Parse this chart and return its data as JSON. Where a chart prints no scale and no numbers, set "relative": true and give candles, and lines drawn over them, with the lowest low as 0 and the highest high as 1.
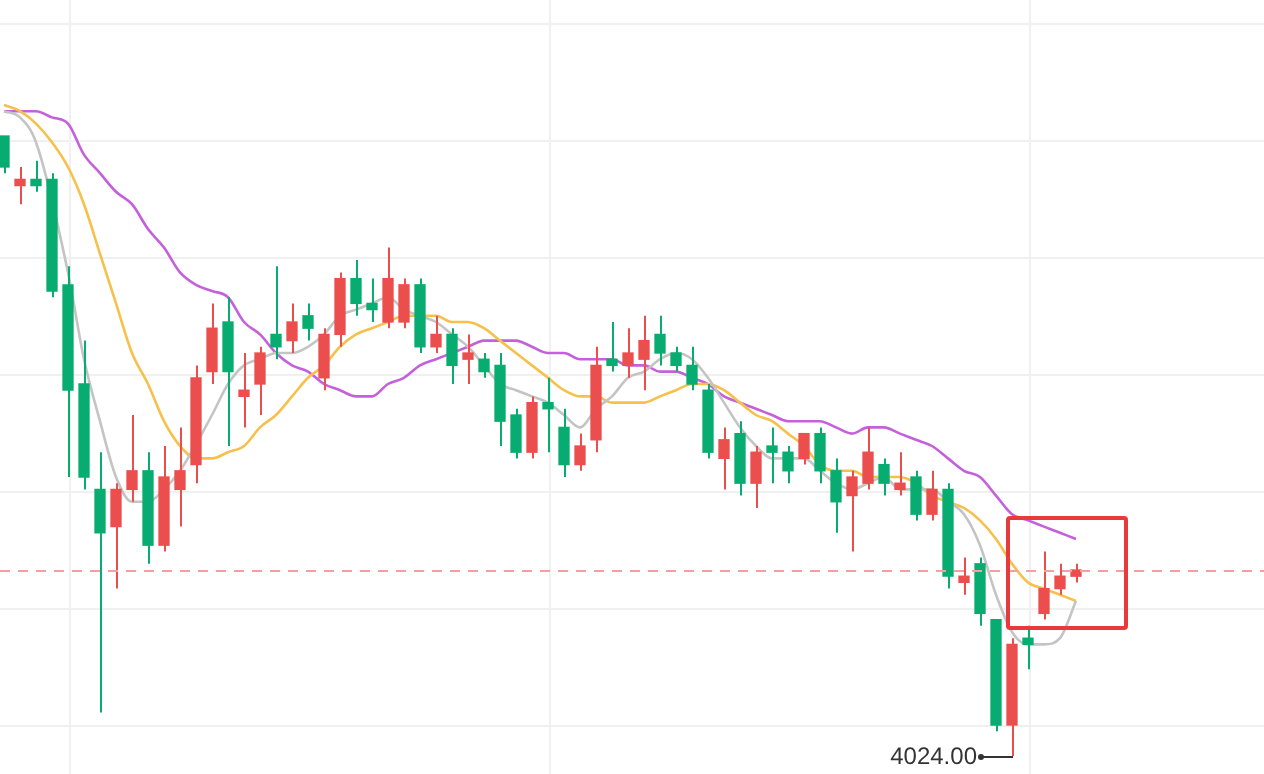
{
  "chart_data": {
    "type": "candlestick",
    "relative": true,
    "categories": [
      null,
      null,
      null,
      null,
      null,
      null,
      null,
      null,
      null,
      null,
      null,
      null,
      null,
      null,
      null,
      null,
      null,
      null,
      null,
      null,
      null,
      null,
      null,
      null,
      null,
      null,
      null,
      null,
      null,
      null,
      null,
      null,
      null,
      null,
      null,
      null,
      null,
      null,
      null,
      null,
      null,
      null,
      null,
      null,
      null,
      null,
      null,
      null,
      null,
      null,
      null,
      null,
      null,
      null,
      null,
      null,
      null,
      null,
      null,
      null,
      null,
      null,
      null,
      null,
      null,
      null,
      null,
      null
    ],
    "ohlc": [
      [
        1.0,
        1.0,
        0.94,
        0.95
      ],
      [
        0.92,
        0.95,
        0.89,
        0.93
      ],
      [
        0.93,
        0.96,
        0.91,
        0.92
      ],
      [
        0.93,
        0.94,
        0.74,
        0.75
      ],
      [
        0.76,
        0.79,
        0.45,
        0.59
      ],
      [
        0.6,
        0.67,
        0.43,
        0.45
      ],
      [
        0.43,
        0.49,
        0.07,
        0.36
      ],
      [
        0.37,
        0.44,
        0.27,
        0.43
      ],
      [
        0.43,
        0.55,
        0.41,
        0.46
      ],
      [
        0.46,
        0.49,
        0.31,
        0.34
      ],
      [
        0.34,
        0.5,
        0.33,
        0.45
      ],
      [
        0.43,
        0.53,
        0.37,
        0.46
      ],
      [
        0.47,
        0.63,
        0.44,
        0.61
      ],
      [
        0.62,
        0.73,
        0.6,
        0.69
      ],
      [
        0.7,
        0.74,
        0.5,
        0.62
      ],
      [
        0.58,
        0.65,
        0.53,
        0.59
      ],
      [
        0.6,
        0.66,
        0.55,
        0.65
      ],
      [
        0.68,
        0.79,
        0.64,
        0.66
      ],
      [
        0.67,
        0.73,
        0.65,
        0.7
      ],
      [
        0.71,
        0.73,
        0.67,
        0.69
      ],
      [
        0.61,
        0.69,
        0.59,
        0.68
      ],
      [
        0.68,
        0.78,
        0.66,
        0.77
      ],
      [
        0.77,
        0.8,
        0.71,
        0.73
      ],
      [
        0.73,
        0.77,
        0.7,
        0.72
      ],
      [
        0.7,
        0.82,
        0.69,
        0.77
      ],
      [
        0.7,
        0.77,
        0.69,
        0.76
      ],
      [
        0.76,
        0.77,
        0.65,
        0.66
      ],
      [
        0.66,
        0.71,
        0.65,
        0.68
      ],
      [
        0.68,
        0.69,
        0.6,
        0.63
      ],
      [
        0.64,
        0.68,
        0.6,
        0.65
      ],
      [
        0.64,
        0.65,
        0.61,
        0.62
      ],
      [
        0.63,
        0.65,
        0.5,
        0.54
      ],
      [
        0.55,
        0.56,
        0.48,
        0.49
      ],
      [
        0.49,
        0.58,
        0.48,
        0.57
      ],
      [
        0.57,
        0.61,
        0.49,
        0.56
      ],
      [
        0.53,
        0.56,
        0.45,
        0.47
      ],
      [
        0.47,
        0.52,
        0.46,
        0.5
      ],
      [
        0.51,
        0.66,
        0.49,
        0.63
      ],
      [
        0.64,
        0.7,
        0.62,
        0.63
      ],
      [
        0.63,
        0.69,
        0.61,
        0.65
      ],
      [
        0.64,
        0.71,
        0.59,
        0.67
      ],
      [
        0.68,
        0.71,
        0.63,
        0.65
      ],
      [
        0.65,
        0.66,
        0.62,
        0.63
      ],
      [
        0.63,
        0.66,
        0.59,
        0.6
      ],
      [
        0.59,
        0.6,
        0.48,
        0.49
      ],
      [
        0.48,
        0.53,
        0.43,
        0.51
      ],
      [
        0.52,
        0.54,
        0.42,
        0.44
      ],
      [
        0.44,
        0.5,
        0.4,
        0.49
      ],
      [
        0.5,
        0.53,
        0.44,
        0.49
      ],
      [
        0.49,
        0.5,
        0.44,
        0.46
      ],
      [
        0.48,
        0.52,
        0.47,
        0.52
      ],
      [
        0.52,
        0.53,
        0.44,
        0.46
      ],
      [
        0.46,
        0.48,
        0.36,
        0.41
      ],
      [
        0.42,
        0.46,
        0.33,
        0.45
      ],
      [
        0.44,
        0.53,
        0.43,
        0.49
      ],
      [
        0.47,
        0.48,
        0.42,
        0.44
      ],
      [
        0.43,
        0.49,
        0.42,
        0.44
      ],
      [
        0.45,
        0.46,
        0.38,
        0.39
      ],
      [
        0.39,
        0.46,
        0.38,
        0.43
      ],
      [
        0.43,
        0.44,
        0.27,
        0.29
      ],
      [
        0.28,
        0.32,
        0.26,
        0.29
      ],
      [
        0.31,
        0.32,
        0.21,
        0.23
      ],
      [
        0.22,
        0.22,
        0.04,
        0.05
      ],
      [
        0.05,
        0.19,
        0,
        0.18
      ],
      [
        0.19,
        0.21,
        0.14,
        0.18
      ],
      [
        0.23,
        0.33,
        0.22,
        0.27
      ],
      [
        0.27,
        0.31,
        0.26,
        0.29
      ],
      [
        0.29,
        0.31,
        0.28,
        0.3
      ]
    ],
    "colors": [
      "#07ac70",
      "#eb4e4d",
      "#07ac70",
      "#07ac70",
      "#07ac70",
      "#07ac70",
      "#07ac70",
      "#eb4e4d",
      "#eb4e4d",
      "#07ac70",
      "#eb4e4d",
      "#eb4e4d",
      "#eb4e4d",
      "#eb4e4d",
      "#07ac70",
      "#eb4e4d",
      "#eb4e4d",
      "#07ac70",
      "#eb4e4d",
      "#07ac70",
      "#eb4e4d",
      "#eb4e4d",
      "#07ac70",
      "#07ac70",
      "#eb4e4d",
      "#eb4e4d",
      "#07ac70",
      "#eb4e4d",
      "#07ac70",
      "#eb4e4d",
      "#07ac70",
      "#07ac70",
      "#07ac70",
      "#eb4e4d",
      "#07ac70",
      "#07ac70",
      "#eb4e4d",
      "#eb4e4d",
      "#07ac70",
      "#eb4e4d",
      "#eb4e4d",
      "#07ac70",
      "#07ac70",
      "#07ac70",
      "#07ac70",
      "#eb4e4d",
      "#07ac70",
      "#eb4e4d",
      "#07ac70",
      "#07ac70",
      "#eb4e4d",
      "#07ac70",
      "#07ac70",
      "#eb4e4d",
      "#eb4e4d",
      "#07ac70",
      "#eb4e4d",
      "#07ac70",
      "#eb4e4d",
      "#07ac70",
      "#eb4e4d",
      "#07ac70",
      "#07ac70",
      "#eb4e4d",
      "#07ac70",
      "#eb4e4d",
      "#eb4e4d",
      "#eb4e4d"
    ],
    "series": [
      {
        "type": "line",
        "color": "#c4c4c4",
        "values": [
          1.04,
          1.03,
          0.99,
          null,
          0.78,
          0.64,
          0.54,
          0.45,
          0.41,
          0.41,
          0.43,
          0.46,
          null,
          0.55,
          0.6,
          0.63,
          0.64,
          0.65,
          0.65,
          0.66,
          0.68,
          0.71,
          0.72,
          0.73,
          0.74,
          0.72,
          0.71,
          0.7,
          0.68,
          0.66,
          0.63,
          0.6,
          0.59,
          0.58,
          0.57,
          0.55,
          0.53,
          0.56,
          0.58,
          0.61,
          0.62,
          0.64,
          0.65,
          0.64,
          0.61,
          0.57,
          0.53,
          0.5,
          0.48,
          0.48,
          0.48,
          0.46,
          0.44,
          0.43,
          0.44,
          0.45,
          0.43,
          0.43,
          0.43,
          0.41,
          0.39,
          0.34,
          0.26,
          0.2,
          0.18,
          0.18,
          0.19,
          0.25
        ]
      },
      {
        "type": "line",
        "color": "#f7c04a",
        "values": [
          1.05,
          1.04,
          1.02,
          0.99,
          0.95,
          0.89,
          0.81,
          0.73,
          0.65,
          0.6,
          0.54,
          0.5,
          0.48,
          0.48,
          0.49,
          0.5,
          0.53,
          0.55,
          0.58,
          0.61,
          0.63,
          0.66,
          0.68,
          0.69,
          0.7,
          0.71,
          0.71,
          0.71,
          0.7,
          0.7,
          0.69,
          0.67,
          0.65,
          0.63,
          0.61,
          0.59,
          0.58,
          0.58,
          0.57,
          0.57,
          0.57,
          0.58,
          0.59,
          0.6,
          0.6,
          0.59,
          0.57,
          0.55,
          0.54,
          0.52,
          0.5,
          0.47,
          0.46,
          0.46,
          0.45,
          0.45,
          0.45,
          0.44,
          0.42,
          0.41,
          0.4,
          0.38,
          0.35,
          0.31,
          0.28,
          0.27,
          0.26,
          0.25
        ]
      },
      {
        "type": "line",
        "color": "#c460dc",
        "values": [
          1.04,
          1.04,
          1.04,
          1.03,
          1.02,
          0.97,
          0.94,
          0.91,
          0.89,
          0.85,
          0.82,
          0.78,
          0.76,
          0.75,
          0.74,
          0.7,
          0.68,
          0.65,
          0.63,
          0.62,
          0.6,
          0.59,
          0.58,
          0.58,
          0.6,
          0.61,
          0.63,
          0.64,
          0.65,
          0.66,
          0.67,
          0.67,
          0.67,
          0.66,
          0.65,
          0.65,
          0.64,
          0.64,
          0.64,
          0.63,
          0.63,
          0.62,
          0.62,
          0.61,
          0.6,
          0.58,
          0.57,
          0.56,
          0.55,
          0.54,
          0.54,
          0.54,
          0.53,
          0.52,
          0.53,
          0.53,
          0.52,
          0.51,
          0.5,
          0.48,
          0.46,
          0.45,
          0.42,
          0.39,
          0.38,
          0.37,
          0.36,
          0.35
        ]
      }
    ],
    "ref_lines": [
      {
        "axis": "y",
        "value": 0.3,
        "color": "#f4a0a0",
        "line_style": "dashed"
      }
    ],
    "annotations": [
      "4024.00"
    ],
    "grid": true
  }
}
